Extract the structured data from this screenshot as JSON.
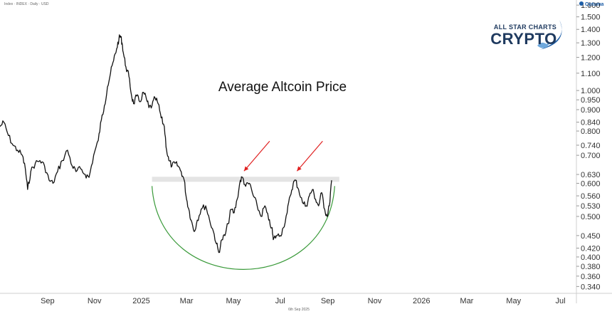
{
  "header": {
    "symbol_line": "Index · INDEX · Daily · USD",
    "brand": "Optuma",
    "footer_date": "6th Sep 2025"
  },
  "logo": {
    "line1": "ALL STAR CHARTS",
    "line2": "CRYPTO"
  },
  "colors": {
    "price_line": "#111111",
    "resistance_band": "#e4e4e4",
    "arrows": "#e02020",
    "base_arc": "#3a9a3a",
    "logo": "#1f3a5f"
  },
  "chart_data": {
    "type": "line",
    "title": "Average Altcoin Price",
    "y_scale": "log",
    "ylim": [
      0.33,
      1.62
    ],
    "y_ticks": [
      1.6,
      1.5,
      1.4,
      1.3,
      1.2,
      1.1,
      1.0,
      0.95,
      0.9,
      0.84,
      0.8,
      0.74,
      0.7,
      0.63,
      0.6,
      0.56,
      0.53,
      0.5,
      0.45,
      0.42,
      0.4,
      0.38,
      0.36,
      0.34
    ],
    "y_tick_labels": [
      "1.600",
      "1.500",
      "1.400",
      "1.300",
      "1.200",
      "1.100",
      "1.000",
      "0.950",
      "0.900",
      "0.840",
      "0.800",
      "0.740",
      "0.700",
      "0.630",
      "0.600",
      "0.560",
      "0.530",
      "0.500",
      "0.450",
      "0.420",
      "0.400",
      "0.380",
      "0.360",
      "0.340"
    ],
    "x_range": [
      "2024-07-01",
      "2026-07-20"
    ],
    "x_ticks": [
      {
        "date": "2024-09-01",
        "label": "Sep"
      },
      {
        "date": "2024-11-01",
        "label": "Nov"
      },
      {
        "date": "2025-01-01",
        "label": "2025"
      },
      {
        "date": "2025-03-01",
        "label": "Mar"
      },
      {
        "date": "2025-05-01",
        "label": "May"
      },
      {
        "date": "2025-07-01",
        "label": "Jul"
      },
      {
        "date": "2025-09-01",
        "label": "Sep"
      },
      {
        "date": "2025-11-01",
        "label": "Nov"
      },
      {
        "date": "2026-01-01",
        "label": "2026"
      },
      {
        "date": "2026-03-01",
        "label": "Mar"
      },
      {
        "date": "2026-05-01",
        "label": "May"
      },
      {
        "date": "2026-07-01",
        "label": "Jul"
      }
    ],
    "grid": false,
    "series": [
      {
        "points": [
          [
            "2024-07-01",
            0.82
          ],
          [
            "2024-07-06",
            0.84
          ],
          [
            "2024-07-12",
            0.78
          ],
          [
            "2024-07-18",
            0.74
          ],
          [
            "2024-07-24",
            0.72
          ],
          [
            "2024-07-30",
            0.7
          ],
          [
            "2024-08-03",
            0.65
          ],
          [
            "2024-08-06",
            0.58
          ],
          [
            "2024-08-10",
            0.64
          ],
          [
            "2024-08-16",
            0.67
          ],
          [
            "2024-08-22",
            0.68
          ],
          [
            "2024-08-28",
            0.66
          ],
          [
            "2024-09-03",
            0.61
          ],
          [
            "2024-09-08",
            0.6
          ],
          [
            "2024-09-14",
            0.64
          ],
          [
            "2024-09-20",
            0.68
          ],
          [
            "2024-09-27",
            0.72
          ],
          [
            "2024-10-03",
            0.66
          ],
          [
            "2024-10-08",
            0.64
          ],
          [
            "2024-10-14",
            0.65
          ],
          [
            "2024-10-20",
            0.63
          ],
          [
            "2024-10-25",
            0.62
          ],
          [
            "2024-10-31",
            0.7
          ],
          [
            "2024-11-06",
            0.76
          ],
          [
            "2024-11-10",
            0.85
          ],
          [
            "2024-11-14",
            0.92
          ],
          [
            "2024-11-18",
            1.02
          ],
          [
            "2024-11-22",
            1.1
          ],
          [
            "2024-11-26",
            1.18
          ],
          [
            "2024-11-30",
            1.26
          ],
          [
            "2024-12-03",
            1.33
          ],
          [
            "2024-12-05",
            1.35
          ],
          [
            "2024-12-07",
            1.3
          ],
          [
            "2024-12-09",
            1.22
          ],
          [
            "2024-12-12",
            1.14
          ],
          [
            "2024-12-16",
            1.08
          ],
          [
            "2024-12-19",
            0.98
          ],
          [
            "2024-12-22",
            0.93
          ],
          [
            "2024-12-26",
            0.97
          ],
          [
            "2024-12-30",
            0.94
          ],
          [
            "2025-01-04",
            0.99
          ],
          [
            "2025-01-08",
            0.95
          ],
          [
            "2025-01-11",
            0.91
          ],
          [
            "2025-01-15",
            0.92
          ],
          [
            "2025-01-19",
            0.96
          ],
          [
            "2025-01-23",
            0.93
          ],
          [
            "2025-01-27",
            0.86
          ],
          [
            "2025-01-31",
            0.82
          ],
          [
            "2025-02-03",
            0.72
          ],
          [
            "2025-02-06",
            0.68
          ],
          [
            "2025-02-10",
            0.66
          ],
          [
            "2025-02-14",
            0.67
          ],
          [
            "2025-02-18",
            0.66
          ],
          [
            "2025-02-22",
            0.64
          ],
          [
            "2025-02-26",
            0.61
          ],
          [
            "2025-03-01",
            0.55
          ],
          [
            "2025-03-04",
            0.52
          ],
          [
            "2025-03-07",
            0.49
          ],
          [
            "2025-03-11",
            0.46
          ],
          [
            "2025-03-15",
            0.49
          ],
          [
            "2025-03-20",
            0.52
          ],
          [
            "2025-03-26",
            0.53
          ],
          [
            "2025-03-31",
            0.49
          ],
          [
            "2025-04-05",
            0.46
          ],
          [
            "2025-04-09",
            0.43
          ],
          [
            "2025-04-12",
            0.41
          ],
          [
            "2025-04-16",
            0.44
          ],
          [
            "2025-04-20",
            0.45
          ],
          [
            "2025-04-24",
            0.48
          ],
          [
            "2025-04-28",
            0.52
          ],
          [
            "2025-05-02",
            0.51
          ],
          [
            "2025-05-06",
            0.55
          ],
          [
            "2025-05-10",
            0.61
          ],
          [
            "2025-05-13",
            0.62
          ],
          [
            "2025-05-17",
            0.59
          ],
          [
            "2025-05-22",
            0.6
          ],
          [
            "2025-05-27",
            0.56
          ],
          [
            "2025-06-01",
            0.53
          ],
          [
            "2025-06-06",
            0.5
          ],
          [
            "2025-06-11",
            0.53
          ],
          [
            "2025-06-16",
            0.49
          ],
          [
            "2025-06-20",
            0.47
          ],
          [
            "2025-06-22",
            0.44
          ],
          [
            "2025-06-26",
            0.45
          ],
          [
            "2025-07-01",
            0.45
          ],
          [
            "2025-07-05",
            0.47
          ],
          [
            "2025-07-10",
            0.51
          ],
          [
            "2025-07-14",
            0.56
          ],
          [
            "2025-07-18",
            0.6
          ],
          [
            "2025-07-21",
            0.61
          ],
          [
            "2025-07-25",
            0.58
          ],
          [
            "2025-07-30",
            0.54
          ],
          [
            "2025-08-04",
            0.53
          ],
          [
            "2025-08-08",
            0.56
          ],
          [
            "2025-08-12",
            0.58
          ],
          [
            "2025-08-16",
            0.55
          ],
          [
            "2025-08-20",
            0.53
          ],
          [
            "2025-08-24",
            0.57
          ],
          [
            "2025-08-28",
            0.52
          ],
          [
            "2025-08-31",
            0.5
          ],
          [
            "2025-09-03",
            0.53
          ],
          [
            "2025-09-06",
            0.61
          ]
        ]
      }
    ],
    "annotations": {
      "resistance_zone": [
        0.605,
        0.622
      ],
      "base_arc": {
        "from": "2025-01-15",
        "to": "2025-09-10",
        "bottom": 0.375
      },
      "arrows_at": [
        "2025-05-13",
        "2025-07-21"
      ]
    }
  }
}
